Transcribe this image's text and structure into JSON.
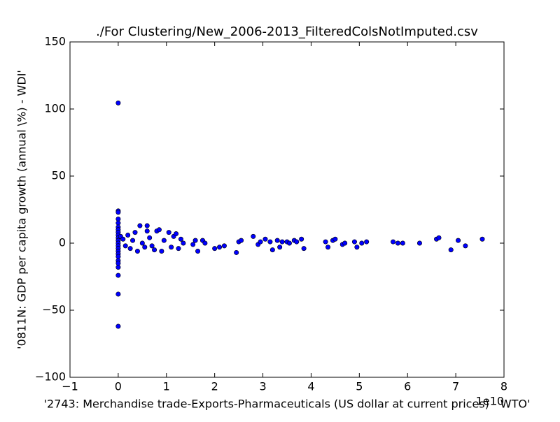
{
  "chart_data": {
    "type": "scatter",
    "title": "./For Clustering/New_2006-2013_FilteredColsNotImputed.csv",
    "x_label": "'2743: Merchandise trade-Exports-Pharmaceuticals (US dollar at current prices) - WTO'",
    "y_label": "'0811N: GDP per capita growth  (annual \\%) - WDI'",
    "x_offset_label": "1e10",
    "xlim": [
      -1,
      8
    ],
    "xticks": [
      {
        "value": -1,
        "label": "−1"
      },
      0,
      1,
      2,
      3,
      4,
      5,
      6,
      7,
      8
    ],
    "ylim": [
      -100,
      150
    ],
    "yticks": [
      {
        "value": -100,
        "label": "−100"
      },
      {
        "value": -50,
        "label": "−50"
      },
      0,
      50,
      100,
      150
    ],
    "color": "#0000ff",
    "x": [
      0,
      0,
      0,
      0,
      0,
      0,
      0,
      0,
      0,
      0,
      0,
      0,
      0,
      0,
      0,
      0,
      0,
      0,
      0,
      0,
      0,
      0,
      0,
      0.05,
      0.1,
      0.15,
      0.2,
      0.25,
      0.3,
      0.35,
      0.4,
      0.45,
      0.5,
      0.55,
      0.6,
      0.6,
      0.65,
      0.7,
      0.75,
      0.8,
      0.85,
      0.9,
      0.95,
      1.05,
      1.1,
      1.15,
      1.2,
      1.25,
      1.3,
      1.35,
      1.55,
      1.6,
      1.65,
      1.75,
      1.8,
      2.0,
      2.1,
      2.2,
      2.45,
      2.5,
      2.55,
      2.8,
      2.9,
      2.95,
      3.05,
      3.15,
      3.2,
      3.3,
      3.35,
      3.4,
      3.5,
      3.55,
      3.65,
      3.7,
      3.8,
      3.85,
      4.3,
      4.35,
      4.45,
      4.5,
      4.65,
      4.7,
      4.9,
      4.95,
      5.05,
      5.15,
      5.7,
      5.8,
      5.9,
      6.25,
      6.6,
      6.65,
      6.9,
      7.05,
      7.2,
      7.55
    ],
    "values": [
      104.5,
      24,
      23,
      18,
      15,
      12,
      10,
      8,
      6,
      4,
      2,
      0,
      -2,
      -4,
      -6,
      -8,
      -10,
      -13,
      -15,
      -18,
      -24,
      -38,
      -62,
      5,
      3,
      -2,
      6,
      -4,
      2,
      8,
      -6,
      13,
      0,
      -3,
      13,
      9,
      4,
      -2,
      -5,
      9,
      10,
      -6,
      2,
      8,
      -3,
      5,
      7,
      -4,
      3,
      0,
      -1,
      2,
      -6,
      2,
      0,
      -4,
      -3,
      -2,
      -7,
      1,
      2,
      5,
      -1,
      1,
      3,
      1,
      -5,
      2,
      -3,
      1,
      1,
      0,
      2,
      1,
      3,
      -4,
      1,
      -3,
      2,
      3,
      -1,
      0,
      1,
      -3,
      0,
      1,
      1,
      0,
      0,
      0,
      3,
      4,
      -5,
      2,
      -2,
      3
    ]
  }
}
